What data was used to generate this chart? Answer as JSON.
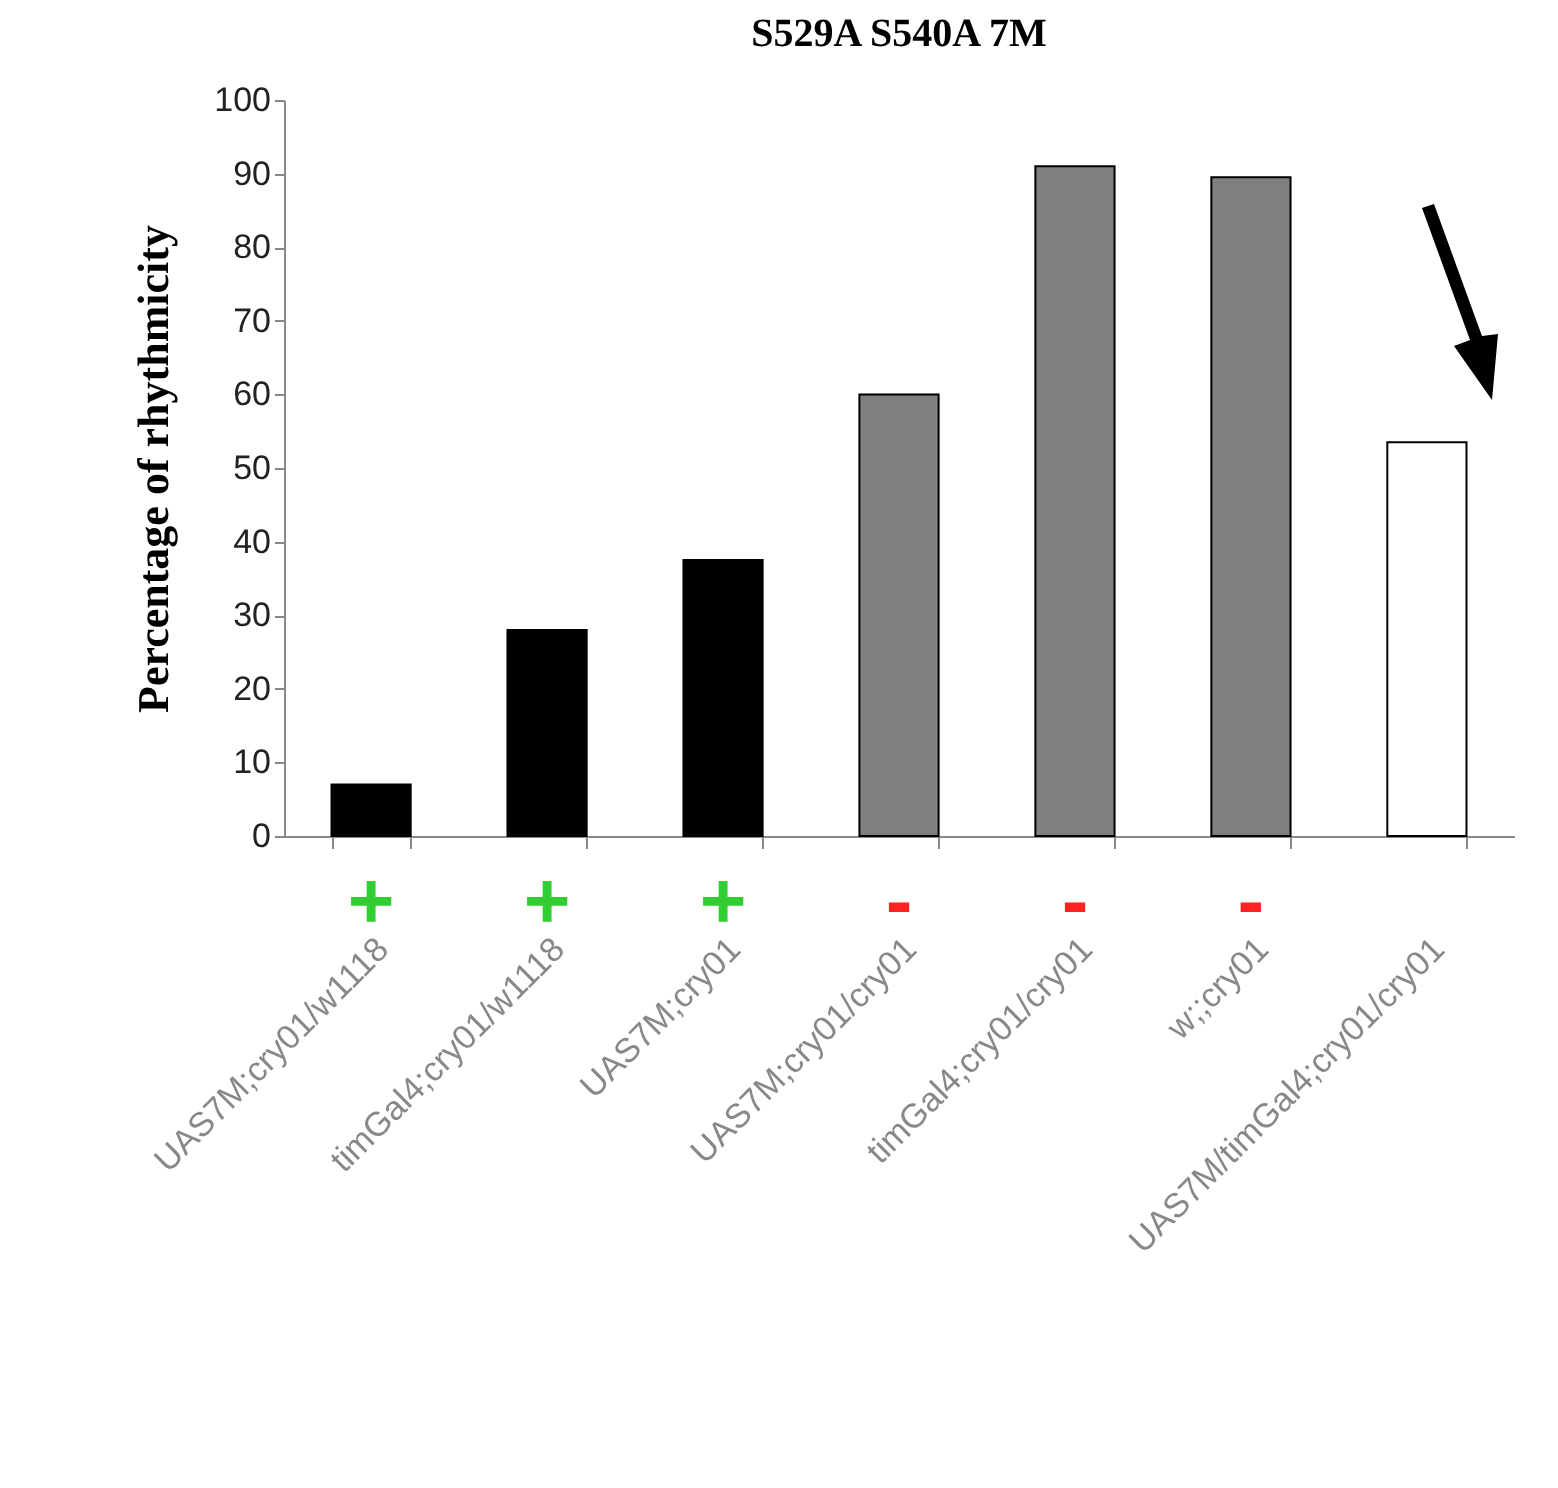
{
  "chart_data": {
    "type": "bar",
    "title": "S529A S540A  7M",
    "ylabel": "Percentage of rhythmicity",
    "categories": [
      "UAS7M;cry01/w1118",
      "timGal4;cry01/w1118",
      "UAS7M;cry01",
      "UAS7M;cry01/cry01",
      "timGal4;cry01/cry01",
      "w;;cry01",
      "UAS7M/timGal4;cry01/cry01"
    ],
    "values": [
      7,
      28,
      37.5,
      60,
      91,
      89.5,
      53.5
    ],
    "colors": [
      "#000000",
      "#000000",
      "#000000",
      "#808080",
      "#808080",
      "#808080",
      "#ffffff"
    ],
    "ylim": [
      0,
      100
    ],
    "yticks": [
      0,
      10,
      20,
      30,
      40,
      50,
      60,
      70,
      80,
      90,
      100
    ],
    "grid": false,
    "annotations": [
      "+",
      "+",
      "+",
      "-",
      "-",
      "-"
    ]
  }
}
